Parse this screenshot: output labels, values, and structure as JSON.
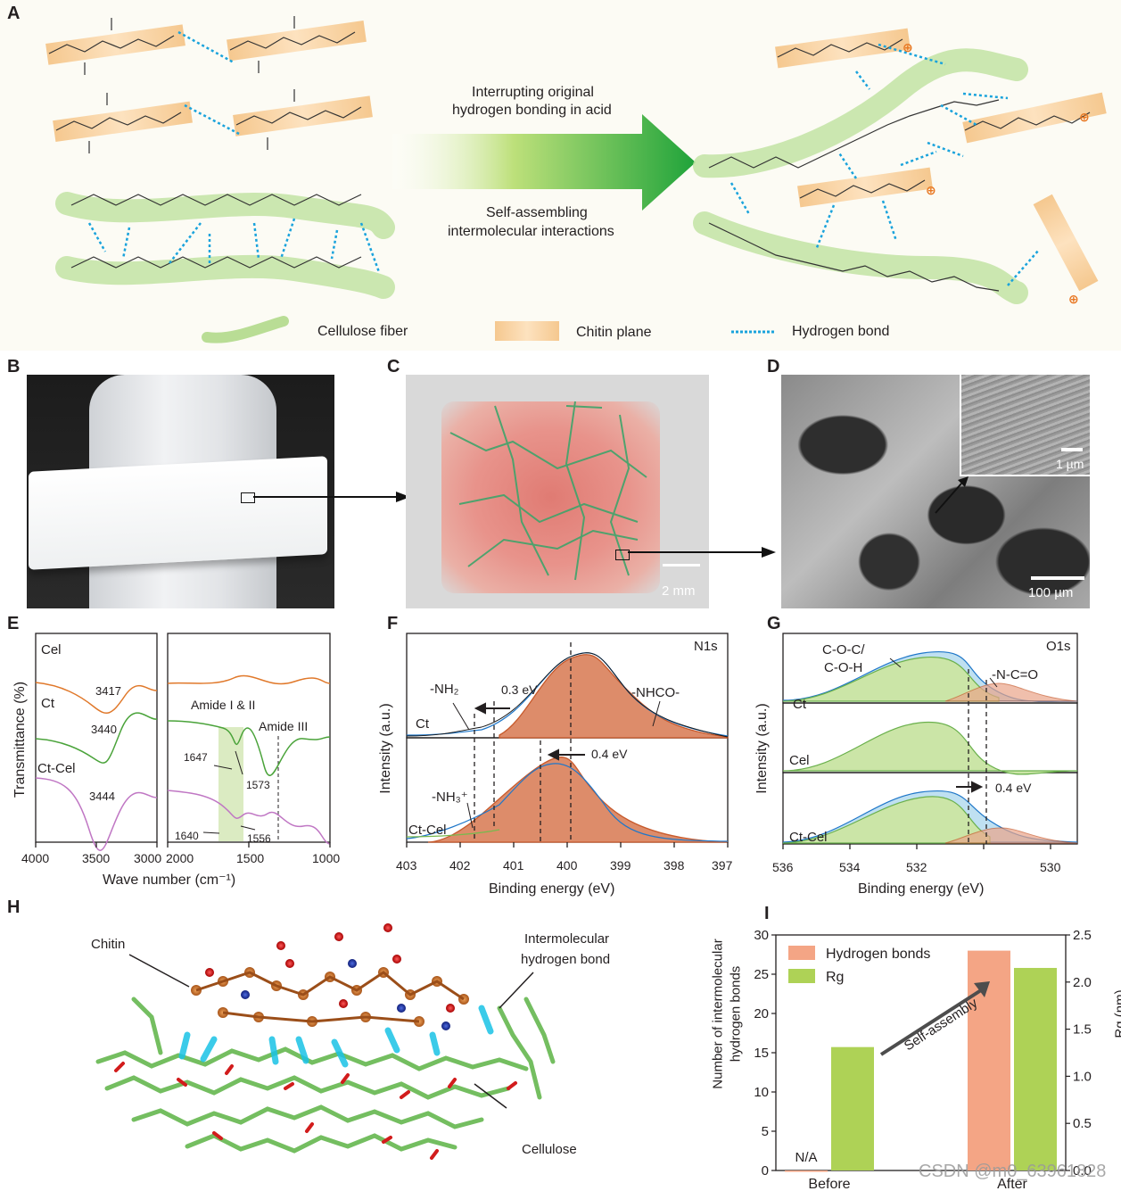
{
  "panel_labels": [
    "A",
    "B",
    "C",
    "D",
    "E",
    "F",
    "G",
    "H",
    "I"
  ],
  "panel_a": {
    "arrow_text_top": [
      "Interrupting original",
      "hydrogen bonding in acid"
    ],
    "arrow_text_bottom": [
      "Self-assembling",
      "intermolecular interactions"
    ],
    "legend": [
      "Cellulose fiber",
      "Chitin plane",
      "Hydrogen bond"
    ],
    "colors": {
      "cellulose": "#b9dd95",
      "chitin": "#f7cf9b",
      "hbond": "#1aa3dc",
      "arrow": "#2faa3a"
    }
  },
  "panel_c": {
    "scale_bar": "2 mm"
  },
  "panel_d": {
    "scale_bar": "100 µm",
    "inset_scale_bar": "1 µm"
  },
  "panel_e": {
    "ylabel": "Transmittance (%)",
    "xlabel": "Wave number (cm⁻¹)",
    "x_ticks_left": [
      "4000",
      "3500",
      "3000"
    ],
    "x_ticks_right": [
      "2000",
      "1500",
      "1000"
    ],
    "series": [
      "Cel",
      "Ct",
      "Ct-Cel"
    ],
    "annotations": [
      "3417",
      "3440",
      "3444",
      "Amide I & II",
      "Amide III",
      "1647",
      "1573",
      "1640",
      "1556"
    ],
    "colors": {
      "Cel": "#e0782a",
      "Ct": "#4aa33a",
      "Ct-Cel": "#c077c4"
    }
  },
  "panel_f": {
    "title": "N1s",
    "ylabel": "Intensity (a.u.)",
    "xlabel": "Binding energy (eV)",
    "x_ticks": [
      "403",
      "402",
      "401",
      "400",
      "399",
      "398",
      "397"
    ],
    "labels": [
      "Ct",
      "Ct-Cel",
      "-NH₂",
      "0.3 eV",
      "-NHCO-",
      "0.4 eV",
      "-NH₃⁺"
    ]
  },
  "panel_g": {
    "title": "O1s",
    "ylabel": "Intensity (a.u.)",
    "xlabel": "Binding energy (eV)",
    "x_ticks": [
      "536",
      "534",
      "532",
      "530"
    ],
    "labels": [
      "Ct",
      "Cel",
      "Ct-Cel",
      "C-O-C/",
      "C-O-H",
      "-N-C=O",
      "0.4 eV"
    ]
  },
  "panel_h": {
    "labels": [
      "Chitin",
      "Intermolecular",
      "hydrogen bond",
      "Cellulose"
    ]
  },
  "chart_data": {
    "type": "bar",
    "categories": [
      "Before",
      "After"
    ],
    "series": [
      {
        "name": "Hydrogen bonds",
        "values": [
          0,
          28
        ],
        "axis": "left",
        "color": "#f4a585"
      },
      {
        "name": "Rg",
        "values": [
          1.31,
          2.15
        ],
        "axis": "right",
        "color": "#aed256"
      }
    ],
    "annotations": [
      "N/A",
      "Self-assembly"
    ],
    "ylabel": "Number of intermolecular hydrogen bonds",
    "ylabel_lines": [
      "Number of intermolecular",
      "hydrogen bonds"
    ],
    "y2label": "Rg (nm)",
    "ylim": [
      0,
      30
    ],
    "y2lim": [
      0,
      2.5
    ],
    "yticks": [
      "0",
      "5",
      "10",
      "15",
      "20",
      "25",
      "30"
    ],
    "y2ticks": [
      "0.0",
      "0.5",
      "1.0",
      "1.5",
      "2.0",
      "2.5"
    ],
    "legend": "top-left"
  },
  "watermark": "CSDN @m0_63961828"
}
